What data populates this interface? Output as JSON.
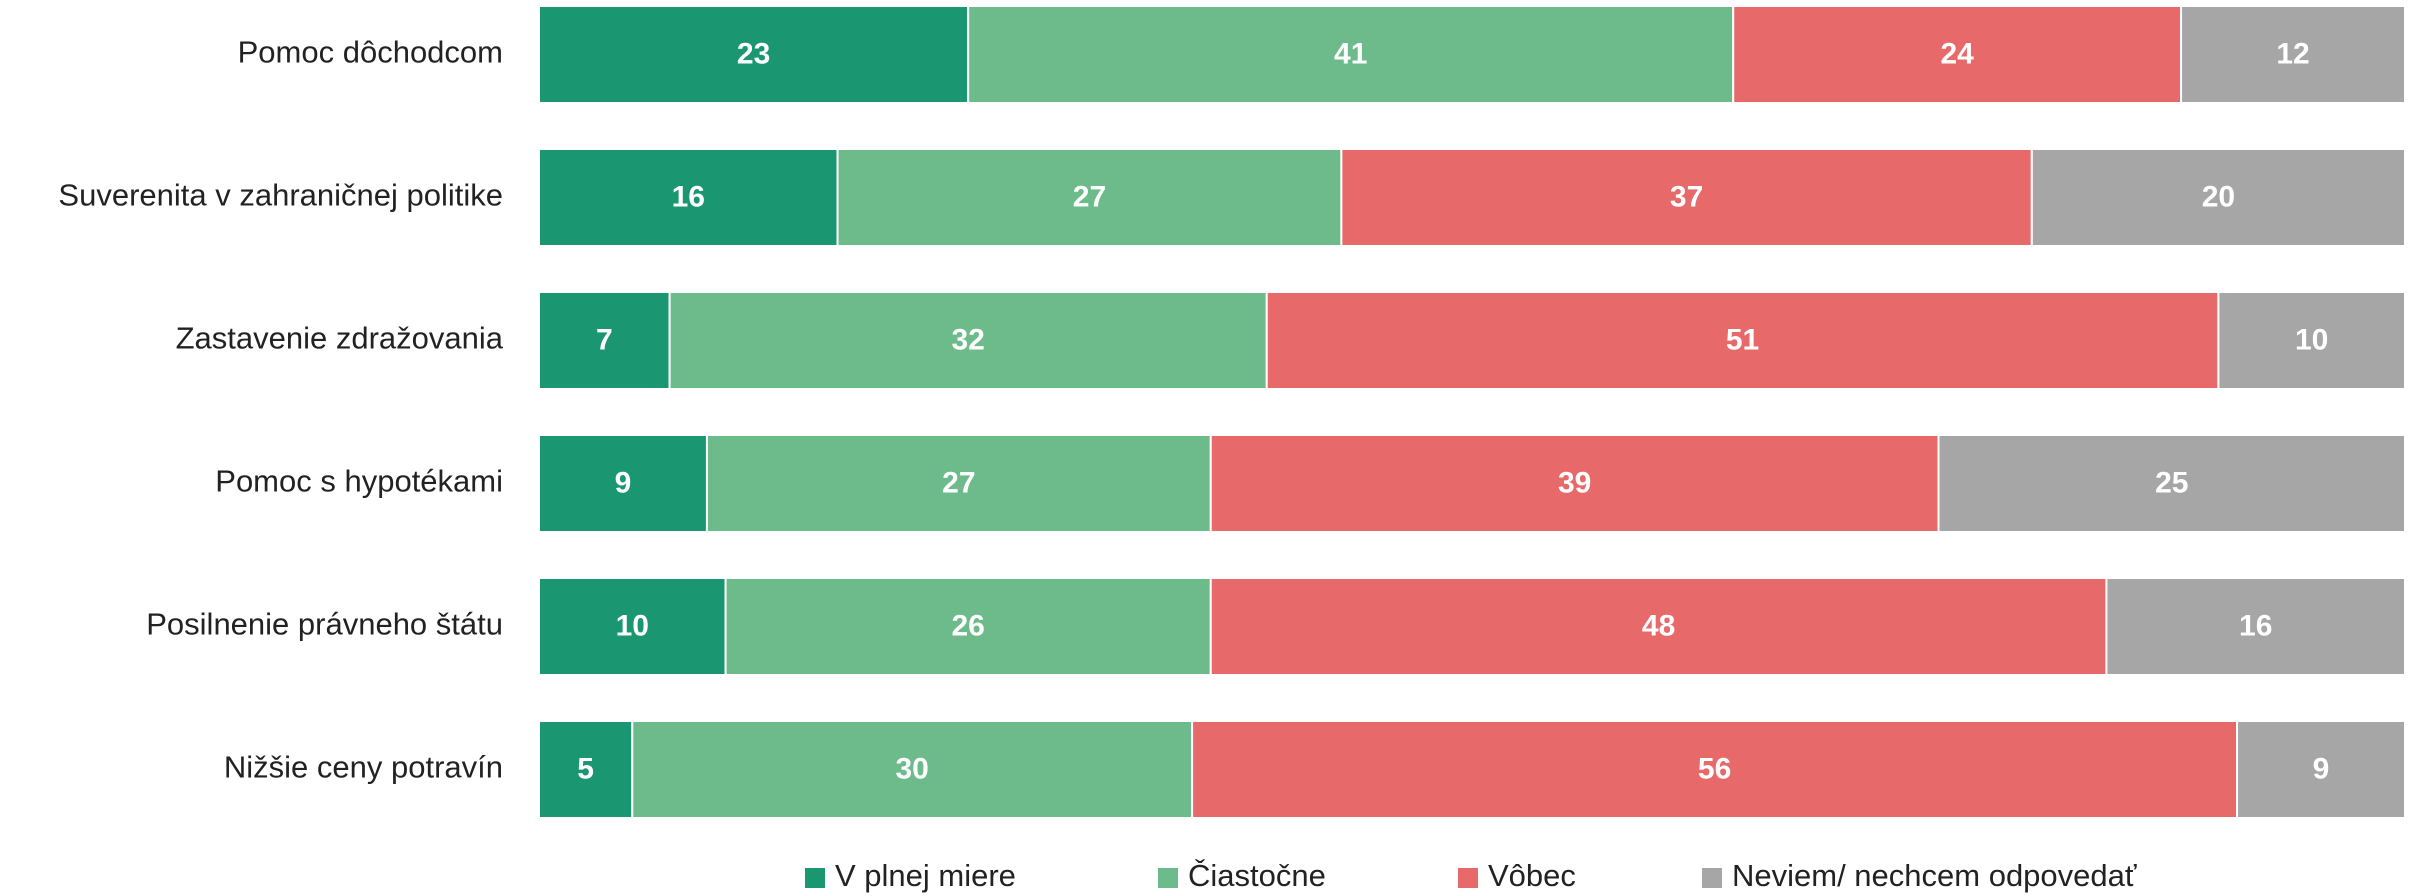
{
  "chart_data": {
    "type": "stacked-bar-horizontal",
    "categories": [
      "Pomoc dôchodcom",
      "Suverenita v zahraničnej politike",
      "Zastavenie zdražovania",
      "Pomoc s hypotékami",
      "Posilnenie právneho štátu",
      "Nižšie ceny potravín"
    ],
    "series": [
      {
        "name": "V plnej miere",
        "color": "#1a9670",
        "values": [
          23,
          16,
          7,
          9,
          10,
          5
        ]
      },
      {
        "name": "Čiastočne",
        "color": "#6dbb8b",
        "values": [
          41,
          27,
          32,
          27,
          26,
          30
        ]
      },
      {
        "name": "Vôbec",
        "color": "#e8696a",
        "values": [
          24,
          37,
          51,
          39,
          48,
          56
        ]
      },
      {
        "name": "Neviem/ nechcem odpovedať",
        "color": "#a6a6a6",
        "values": [
          12,
          20,
          10,
          25,
          16,
          9
        ]
      }
    ],
    "xlim": [
      0,
      100
    ],
    "legend": "bottom"
  }
}
